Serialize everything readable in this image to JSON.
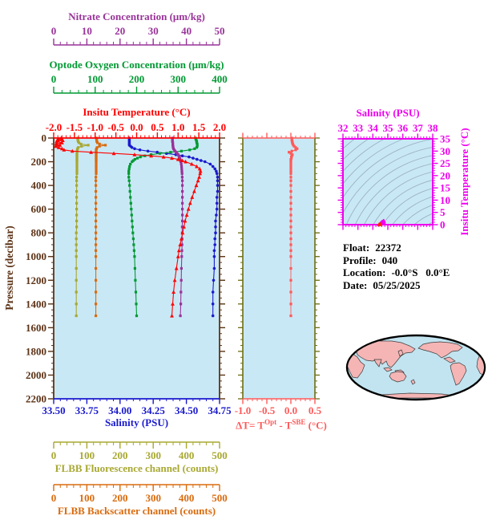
{
  "colors": {
    "plot_background": "#C9E8F5",
    "map_ocean": "#C2E4F0",
    "map_land": "#F5B5B5",
    "contour": "#93A8BB",
    "frame_brown": "#5C3317",
    "delta_side": "#6E6E14"
  },
  "float_info": {
    "rows": [
      {
        "label": "Float:",
        "value": "22372"
      },
      {
        "label": "Profile:",
        "value": "040"
      },
      {
        "label": "Location:",
        "value": "-0.0°S   0.0°E"
      },
      {
        "label": "Date:",
        "value": "05/25/2025"
      }
    ]
  },
  "chart_data": [
    {
      "type": "line",
      "id": "profile-plot",
      "y_axis": {
        "label": "Pressure (decibar)",
        "range": [
          0,
          2200
        ],
        "tick_labels": [
          "0",
          "200",
          "400",
          "600",
          "800",
          "1000",
          "1200",
          "1400",
          "1600",
          "1800",
          "2000",
          "2200"
        ],
        "minor_step": 50,
        "color": "#5C3317"
      },
      "x_axes": {
        "temperature": {
          "title": "Insitu Temperature (°C)",
          "color": "#FF0000",
          "range": [
            -2,
            2
          ],
          "tick_labels": [
            "-2.0",
            "-1.5",
            "-1.0",
            "-0.5",
            "0.0",
            "0.5",
            "1.0",
            "1.5",
            "2.0"
          ],
          "minor_step": 0.1
        },
        "salinity": {
          "title": "Salinity (PSU)",
          "color": "#1A1ACD",
          "range": [
            33.5,
            34.75
          ],
          "tick_labels": [
            "33.50",
            "33.75",
            "34.00",
            "34.25",
            "34.50",
            "34.75"
          ],
          "minor_step": 0.05
        },
        "nitrate": {
          "title": "Nitrate Concentration (μm/kg)",
          "color": "#993399",
          "range": [
            0,
            50
          ],
          "tick_labels": [
            "0",
            "10",
            "20",
            "30",
            "40",
            "50"
          ],
          "minor_step": 2
        },
        "oxygen": {
          "title": "Optode Oxygen Concentration (μm/kg)",
          "color": "#009933",
          "range": [
            0,
            400
          ],
          "tick_labels": [
            "0",
            "100",
            "200",
            "300",
            "400"
          ],
          "minor_step": 20
        },
        "fluorescence": {
          "title": "FLBB Fluorescence channel (counts)",
          "color": "#A8A832",
          "range": [
            0,
            500
          ],
          "tick_labels": [
            "0",
            "100",
            "200",
            "300",
            "400",
            "500"
          ],
          "minor_step": 20
        },
        "backscatter": {
          "title": "FLBB Backscatter channel (counts)",
          "color": "#D96B0E",
          "range": [
            0,
            500
          ],
          "tick_labels": [
            "0",
            "100",
            "200",
            "300",
            "400",
            "500"
          ],
          "minor_step": 20
        }
      },
      "pressure_levels": [
        0,
        10,
        20,
        30,
        40,
        50,
        60,
        70,
        80,
        90,
        100,
        110,
        120,
        130,
        140,
        150,
        160,
        170,
        180,
        190,
        200,
        220,
        240,
        260,
        280,
        300,
        330,
        360,
        400,
        450,
        500,
        550,
        600,
        650,
        700,
        750,
        800,
        850,
        900,
        950,
        1000,
        1100,
        1200,
        1300,
        1400,
        1500
      ],
      "series": [
        {
          "name": "salinity",
          "axis": "salinity",
          "color": "#1A1ACD",
          "marker": "circle",
          "values": [
            34.07,
            34.07,
            34.07,
            34.07,
            34.07,
            34.07,
            34.07,
            34.08,
            34.09,
            34.11,
            34.15,
            34.21,
            34.28,
            34.35,
            34.42,
            34.47,
            34.52,
            34.55,
            34.58,
            34.61,
            34.64,
            34.68,
            34.7,
            34.715,
            34.725,
            34.73,
            34.735,
            34.735,
            34.735,
            34.735,
            34.73,
            34.73,
            34.73,
            34.725,
            34.72,
            34.72,
            34.72,
            34.715,
            34.715,
            34.71,
            34.71,
            34.71,
            34.705,
            34.7,
            34.7,
            34.7
          ]
        },
        {
          "name": "oxygen",
          "axis": "oxygen",
          "color": "#009933",
          "marker": "square",
          "values": [
            342,
            343,
            344,
            345,
            345,
            346,
            346,
            346,
            345,
            340,
            328,
            308,
            282,
            256,
            235,
            220,
            209,
            202,
            196,
            192,
            189,
            185,
            183,
            182,
            181,
            181,
            181,
            182,
            183,
            184,
            185,
            186,
            187,
            188,
            189,
            190,
            191,
            192,
            193,
            194,
            195,
            196,
            197,
            198,
            199,
            200
          ]
        },
        {
          "name": "nitrate",
          "axis": "nitrate",
          "color": "#993399",
          "marker": "square",
          "values": [
            35.8,
            35.8,
            35.8,
            35.8,
            35.9,
            35.9,
            35.9,
            36.0,
            36.0,
            36.1,
            36.3,
            36.6,
            36.9,
            37.2,
            37.5,
            37.7,
            37.9,
            38.0,
            38.1,
            38.2,
            38.3,
            38.45,
            38.55,
            38.6,
            38.65,
            38.7,
            38.75,
            38.8,
            38.8,
            38.8,
            38.8,
            38.8,
            38.8,
            38.8,
            38.8,
            38.75,
            38.75,
            38.7,
            38.7,
            38.65,
            38.6,
            38.5,
            38.45,
            38.35,
            38.3,
            38.2
          ]
        },
        {
          "name": "fluorescence",
          "axis": "fluorescence",
          "color": "#A8A832",
          "marker": "square",
          "values": [
            72,
            73,
            73,
            74,
            76,
            82,
            104,
            84,
            74,
            72,
            71,
            71,
            70,
            70,
            70,
            70,
            70,
            70,
            70,
            70,
            70,
            70,
            70,
            70,
            70,
            70,
            69,
            69,
            69,
            69,
            69,
            69,
            69,
            69,
            69,
            69,
            68,
            68,
            68,
            68,
            68,
            68,
            68,
            68,
            68,
            68
          ]
        },
        {
          "name": "backscatter",
          "axis": "backscatter",
          "color": "#D96B0E",
          "marker": "square",
          "values": [
            129,
            129,
            130,
            130,
            132,
            138,
            156,
            138,
            131,
            129,
            128,
            128,
            128,
            128,
            128,
            128,
            128,
            128,
            128,
            128,
            128,
            128,
            128,
            128,
            128,
            128,
            127,
            127,
            127,
            127,
            127,
            127,
            127,
            127,
            127,
            127,
            127,
            127,
            127,
            127,
            127,
            127,
            127,
            127,
            127,
            127
          ]
        },
        {
          "name": "temperature",
          "axis": "temperature",
          "color": "#FF0000",
          "marker": "triangle",
          "values": [
            -1.82,
            -1.9,
            -1.78,
            -1.93,
            -1.8,
            -1.94,
            -1.85,
            -1.95,
            -1.88,
            -1.8,
            -1.75,
            -1.55,
            -1.1,
            -0.55,
            -0.05,
            0.35,
            0.65,
            0.85,
            1.0,
            1.1,
            1.18,
            1.33,
            1.45,
            1.52,
            1.54,
            1.53,
            1.51,
            1.48,
            1.44,
            1.39,
            1.34,
            1.29,
            1.25,
            1.21,
            1.17,
            1.14,
            1.11,
            1.08,
            1.05,
            1.02,
            1.0,
            0.96,
            0.92,
            0.89,
            0.87,
            0.85
          ]
        }
      ]
    },
    {
      "type": "line",
      "id": "delta-t-panel",
      "x_axis": {
        "title_parts": [
          "ΔT= T",
          "Opt",
          " - T",
          "SBE",
          " (°C)"
        ],
        "color": "#FF5A5A",
        "range": [
          -1,
          0.5
        ],
        "tick_labels": [
          "-1.0",
          "-0.5",
          "0.0",
          "0.5"
        ],
        "minor_step": 0.1
      },
      "marker": "square",
      "color": "#FF5A5A",
      "values": [
        0.02,
        0.02,
        0.02,
        0.03,
        0.03,
        0.04,
        0.05,
        0.07,
        0.1,
        0.13,
        0.1,
        0.02,
        -0.04,
        0.0,
        0.03,
        0.02,
        0.01,
        0.01,
        0.0,
        0.0,
        0.0,
        0.0,
        0.0,
        0.0,
        0.0,
        0.0,
        0.0,
        0.0,
        0.0,
        0.0,
        0.0,
        0.0,
        0.0,
        0.0,
        0.0,
        0.0,
        0.0,
        0.0,
        0.0,
        0.0,
        0.0,
        0.0,
        0.0,
        0.0,
        0.0,
        0.0
      ]
    },
    {
      "type": "scatter",
      "id": "ts-diagram",
      "x_axis": {
        "title": "Salinity (PSU)",
        "color": "#EE00EE",
        "range": [
          32,
          38
        ],
        "tick_labels": [
          "32",
          "33",
          "34",
          "35",
          "36",
          "37",
          "38"
        ],
        "minor_step": 0.2
      },
      "y_axis": {
        "title": "Insitu Temperature (°C)",
        "color": "#EE00EE",
        "range": [
          0,
          35
        ],
        "tick_labels": [
          "0",
          "5",
          "10",
          "15",
          "20",
          "25",
          "30",
          "35"
        ],
        "minor_step": 1
      },
      "marker": "triangle",
      "color": "#EE00EE",
      "accent_color": "#FF2200",
      "contour_count": 17,
      "points": [
        [
          34.47,
          0.35
        ],
        [
          34.52,
          0.65
        ],
        [
          34.55,
          0.85
        ],
        [
          34.58,
          1.0
        ],
        [
          34.61,
          1.1
        ],
        [
          34.64,
          1.18
        ],
        [
          34.68,
          1.33
        ],
        [
          34.7,
          1.45
        ],
        [
          34.715,
          1.52
        ],
        [
          34.725,
          1.54
        ],
        [
          34.73,
          1.53
        ],
        [
          34.735,
          1.51
        ],
        [
          34.735,
          1.48
        ],
        [
          34.735,
          1.44
        ],
        [
          34.735,
          1.39
        ],
        [
          34.73,
          1.34
        ],
        [
          34.73,
          1.29
        ],
        [
          34.73,
          1.25
        ],
        [
          34.725,
          1.21
        ],
        [
          34.72,
          1.17
        ],
        [
          34.72,
          1.14
        ],
        [
          34.72,
          1.11
        ],
        [
          34.715,
          1.08
        ],
        [
          34.715,
          1.05
        ],
        [
          34.71,
          1.02
        ],
        [
          34.71,
          1.0
        ],
        [
          34.71,
          0.96
        ],
        [
          34.705,
          0.92
        ],
        [
          34.7,
          0.89
        ],
        [
          34.7,
          0.87
        ],
        [
          34.7,
          0.85
        ]
      ],
      "accent_points": [
        [
          34.44,
          0.1
        ],
        [
          34.5,
          0.3
        ],
        [
          34.4,
          0.02
        ],
        [
          34.47,
          0.18
        ]
      ]
    },
    {
      "type": "map",
      "id": "world-map",
      "land_color": "#F5B5B5",
      "ocean_color": "#C2E4F0"
    }
  ]
}
